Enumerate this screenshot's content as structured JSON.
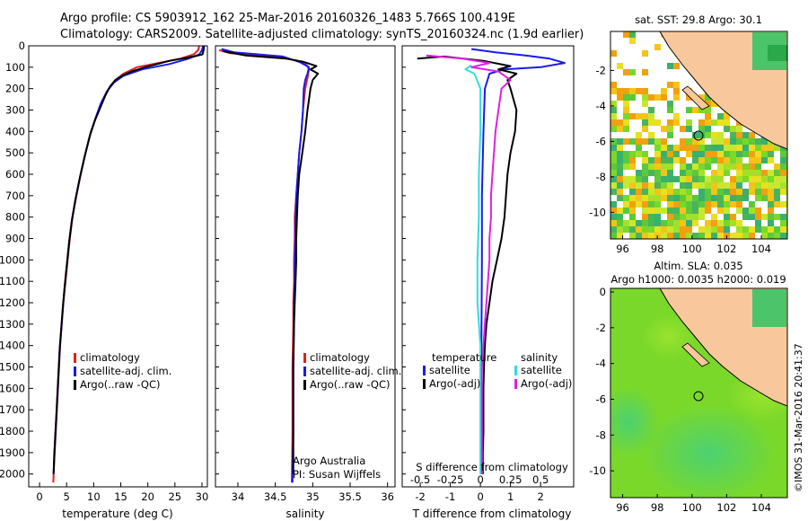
{
  "header": {
    "line1": "Argo profile: CS 5903912_162 25-Mar-2016 20160326_1483 5.766S 100.419E",
    "line2": "Climatology: CARS2009. Satellite-adjusted climatology: synTS_20160324.nc (1.9d earlier)"
  },
  "credit": "©IMOS 31-Mar-2016 20:41:37",
  "chart_data": [
    {
      "type": "line",
      "id": "temperature",
      "xlabel": "temperature (deg C)",
      "ylabel": "",
      "xlim": [
        -2,
        31
      ],
      "ylim": [
        2060,
        0
      ],
      "xticks": [
        0,
        5,
        10,
        15,
        20,
        25,
        30
      ],
      "yticks": [
        0,
        100,
        200,
        300,
        400,
        500,
        600,
        700,
        800,
        900,
        1000,
        1100,
        1200,
        1300,
        1400,
        1500,
        1600,
        1700,
        1800,
        1900,
        2000
      ],
      "legend": [
        "climatology",
        "satellite-adj. clim.",
        "Argo(..raw -QC)"
      ],
      "series": [
        {
          "name": "climatology",
          "color": "#e02020",
          "points": [
            [
              29.5,
              0
            ],
            [
              29.3,
              20
            ],
            [
              28.5,
              40
            ],
            [
              26,
              60
            ],
            [
              22,
              80
            ],
            [
              18,
              100
            ],
            [
              15.5,
              130
            ],
            [
              14,
              160
            ],
            [
              12.8,
              200
            ],
            [
              11.5,
              260
            ],
            [
              10.5,
              330
            ],
            [
              9.5,
              400
            ],
            [
              8.5,
              500
            ],
            [
              7.6,
              600
            ],
            [
              6.8,
              700
            ],
            [
              6.1,
              800
            ],
            [
              5.6,
              900
            ],
            [
              5.2,
              1000
            ],
            [
              4.8,
              1100
            ],
            [
              4.4,
              1200
            ],
            [
              4.1,
              1300
            ],
            [
              3.8,
              1400
            ],
            [
              3.6,
              1500
            ],
            [
              3.4,
              1600
            ],
            [
              3.2,
              1700
            ],
            [
              3.0,
              1800
            ],
            [
              2.8,
              1900
            ],
            [
              2.6,
              2000
            ],
            [
              2.55,
              2040
            ]
          ]
        },
        {
          "name": "satellite-adj. clim.",
          "color": "#1a1aee",
          "points": [
            [
              30.2,
              0
            ],
            [
              30,
              20
            ],
            [
              29.5,
              40
            ],
            [
              27.5,
              60
            ],
            [
              24,
              85
            ],
            [
              19,
              110
            ],
            [
              15.5,
              140
            ],
            [
              13.8,
              170
            ],
            [
              12.5,
              210
            ],
            [
              11.3,
              270
            ],
            [
              10.3,
              340
            ],
            [
              9.4,
              410
            ],
            [
              8.4,
              510
            ],
            [
              7.5,
              610
            ],
            [
              6.7,
              710
            ],
            [
              6.0,
              810
            ],
            [
              5.5,
              910
            ],
            [
              5.1,
              1010
            ],
            [
              4.7,
              1110
            ],
            [
              4.35,
              1210
            ],
            [
              4.05,
              1310
            ],
            [
              3.75,
              1410
            ],
            [
              3.55,
              1510
            ],
            [
              3.35,
              1610
            ],
            [
              3.15,
              1710
            ],
            [
              2.95,
              1810
            ],
            [
              2.75,
              1910
            ],
            [
              2.6,
              2000
            ]
          ]
        },
        {
          "name": "Argo(..raw -QC)",
          "color": "#000000",
          "points": [
            [
              30.4,
              0
            ],
            [
              30.3,
              20
            ],
            [
              30.1,
              40
            ],
            [
              28.5,
              50
            ],
            [
              24,
              70
            ],
            [
              19.5,
              100
            ],
            [
              17,
              120
            ],
            [
              15.2,
              140
            ],
            [
              14,
              160
            ],
            [
              13,
              190
            ],
            [
              12.2,
              230
            ],
            [
              11.2,
              290
            ],
            [
              10.2,
              350
            ],
            [
              9.3,
              420
            ],
            [
              8.3,
              520
            ],
            [
              7.4,
              620
            ],
            [
              6.6,
              720
            ],
            [
              5.95,
              820
            ],
            [
              5.45,
              920
            ],
            [
              5.05,
              1020
            ],
            [
              4.65,
              1120
            ],
            [
              4.3,
              1220
            ],
            [
              4.0,
              1320
            ],
            [
              3.7,
              1420
            ],
            [
              3.5,
              1520
            ],
            [
              3.3,
              1620
            ],
            [
              3.1,
              1720
            ],
            [
              2.9,
              1820
            ],
            [
              2.7,
              1920
            ],
            [
              2.6,
              2000
            ]
          ]
        }
      ]
    },
    {
      "type": "line",
      "id": "salinity",
      "xlabel": "salinity",
      "xlim": [
        33.7,
        36.1
      ],
      "ylim": [
        2060,
        0
      ],
      "xticks": [
        34,
        34.5,
        35,
        35.5,
        36
      ],
      "annotation": [
        "Argo Australia",
        "PI: Susan Wijffels"
      ],
      "legend": [
        "climatology",
        "satellite-adj. clim.",
        "Argo(..raw -QC)"
      ],
      "series": [
        {
          "name": "climatology",
          "color": "#e02020",
          "points": [
            [
              33.75,
              20
            ],
            [
              33.9,
              35
            ],
            [
              34.5,
              50
            ],
            [
              34.8,
              70
            ],
            [
              34.92,
              90
            ],
            [
              34.95,
              110
            ],
            [
              34.93,
              150
            ],
            [
              34.9,
              200
            ],
            [
              34.87,
              300
            ],
            [
              34.85,
              400
            ],
            [
              34.82,
              500
            ],
            [
              34.8,
              600
            ],
            [
              34.78,
              700
            ],
            [
              34.76,
              800
            ],
            [
              34.76,
              900
            ],
            [
              34.75,
              1000
            ],
            [
              34.75,
              1100
            ],
            [
              34.74,
              1200
            ],
            [
              34.74,
              1300
            ],
            [
              34.73,
              1500
            ],
            [
              34.73,
              1800
            ],
            [
              34.72,
              2040
            ]
          ]
        },
        {
          "name": "satellite-adj. clim.",
          "color": "#1a1aee",
          "points": [
            [
              33.78,
              15
            ],
            [
              33.95,
              30
            ],
            [
              34.6,
              50
            ],
            [
              34.82,
              75
            ],
            [
              34.95,
              100
            ],
            [
              34.93,
              130
            ],
            [
              34.9,
              160
            ],
            [
              34.88,
              200
            ],
            [
              34.87,
              300
            ],
            [
              34.85,
              400
            ],
            [
              34.82,
              500
            ],
            [
              34.8,
              600
            ],
            [
              34.78,
              700
            ],
            [
              34.77,
              800
            ],
            [
              34.77,
              900
            ],
            [
              34.76,
              1000
            ],
            [
              34.76,
              1100
            ],
            [
              34.75,
              1200
            ],
            [
              34.75,
              1300
            ],
            [
              34.74,
              1500
            ],
            [
              34.74,
              1800
            ],
            [
              34.73,
              2040
            ]
          ]
        },
        {
          "name": "Argo(..raw -QC)",
          "color": "#000000",
          "points": [
            [
              33.8,
              25
            ],
            [
              34.1,
              45
            ],
            [
              34.65,
              60
            ],
            [
              34.88,
              75
            ],
            [
              35.05,
              95
            ],
            [
              34.97,
              110
            ],
            [
              35.07,
              130
            ],
            [
              35.0,
              160
            ],
            [
              34.97,
              200
            ],
            [
              34.95,
              250
            ],
            [
              34.93,
              300
            ],
            [
              34.9,
              400
            ],
            [
              34.86,
              500
            ],
            [
              34.82,
              600
            ],
            [
              34.8,
              700
            ],
            [
              34.79,
              800
            ],
            [
              34.78,
              900
            ],
            [
              34.78,
              1000
            ],
            [
              34.77,
              1100
            ],
            [
              34.76,
              1200
            ],
            [
              34.75,
              1300
            ],
            [
              34.74,
              1500
            ],
            [
              34.74,
              1800
            ],
            [
              34.74,
              2000
            ]
          ]
        }
      ]
    },
    {
      "type": "line",
      "id": "difference",
      "xlabel_bottom": "T difference from climatology",
      "xlabel_top": "S difference from climatology",
      "xlim": [
        -2.6,
        3.1
      ],
      "ylim": [
        2060,
        0
      ],
      "xticks": [
        -2,
        -1,
        0,
        1,
        2
      ],
      "xticks_top": [
        "-0.5",
        "-0.25",
        "0",
        "0.25",
        "0.5"
      ],
      "legend_titles": [
        "temperature",
        "salinity"
      ],
      "legend": [
        "satellite",
        "Argo(-adj)",
        "satellite",
        "Argo(-adj)"
      ],
      "series": [
        {
          "name": "temperature satellite",
          "color": "#1a1aee",
          "points": [
            [
              -0.3,
              15
            ],
            [
              0.5,
              30
            ],
            [
              1.5,
              45
            ],
            [
              2.3,
              60
            ],
            [
              2.8,
              80
            ],
            [
              2.0,
              100
            ],
            [
              0.8,
              110
            ],
            [
              0.3,
              130
            ],
            [
              0.15,
              200
            ],
            [
              0.1,
              400
            ],
            [
              0.05,
              700
            ],
            [
              0.05,
              1000
            ],
            [
              0.03,
              1500
            ],
            [
              0.02,
              2000
            ]
          ]
        },
        {
          "name": "temperature Argo(-adj)",
          "color": "#000000",
          "points": [
            [
              -2.1,
              60
            ],
            [
              -1.2,
              50
            ],
            [
              0.1,
              70
            ],
            [
              1.0,
              95
            ],
            [
              0.6,
              110
            ],
            [
              1.2,
              130
            ],
            [
              0.9,
              160
            ],
            [
              1.0,
              200
            ],
            [
              1.2,
              300
            ],
            [
              1.15,
              400
            ],
            [
              1.0,
              500
            ],
            [
              0.9,
              600
            ],
            [
              0.85,
              700
            ],
            [
              0.8,
              800
            ],
            [
              0.7,
              900
            ],
            [
              0.55,
              1000
            ],
            [
              0.4,
              1100
            ],
            [
              0.3,
              1200
            ],
            [
              0.2,
              1300
            ],
            [
              0.15,
              1400
            ],
            [
              0.12,
              1500
            ],
            [
              0.1,
              1600
            ],
            [
              0.1,
              1700
            ],
            [
              0.1,
              1800
            ],
            [
              0.08,
              1900
            ],
            [
              0.08,
              2000
            ]
          ]
        },
        {
          "name": "salinity satellite",
          "color": "#33dddd",
          "points": [
            [
              -0.3,
              90
            ],
            [
              -0.5,
              110
            ],
            [
              -0.2,
              130
            ],
            [
              0.0,
              200
            ],
            [
              0.0,
              400
            ],
            [
              -0.05,
              600
            ],
            [
              -0.05,
              800
            ],
            [
              -0.1,
              1000
            ],
            [
              -0.1,
              1200
            ],
            [
              0.0,
              1400
            ],
            [
              0.0,
              1800
            ],
            [
              0.0,
              2000
            ]
          ]
        },
        {
          "name": "salinity Argo(-adj)",
          "color": "#e020e0",
          "points": [
            [
              -1.8,
              45
            ],
            [
              -0.6,
              60
            ],
            [
              0.3,
              80
            ],
            [
              -0.3,
              100
            ],
            [
              0.6,
              120
            ],
            [
              1.0,
              160
            ],
            [
              0.7,
              200
            ],
            [
              0.6,
              300
            ],
            [
              0.5,
              400
            ],
            [
              0.45,
              500
            ],
            [
              0.4,
              600
            ],
            [
              0.35,
              700
            ],
            [
              0.35,
              800
            ],
            [
              0.3,
              900
            ],
            [
              0.3,
              1000
            ],
            [
              0.25,
              1100
            ],
            [
              0.2,
              1200
            ],
            [
              0.15,
              1300
            ],
            [
              0.1,
              1400
            ],
            [
              0.05,
              1500
            ],
            [
              0.05,
              1700
            ],
            [
              0.05,
              1900
            ],
            [
              0.05,
              2000
            ]
          ]
        }
      ]
    },
    {
      "type": "heatmap",
      "id": "sst-map",
      "title": "sat. SST: 29.8 Argo: 30.1",
      "xlim": [
        95.3,
        105.5
      ],
      "ylim": [
        -11.5,
        0.2
      ],
      "xticks": [
        96,
        98,
        100,
        102,
        104
      ],
      "yticks": [
        -2,
        -4,
        -6,
        -8,
        -10
      ],
      "marker": {
        "lon": 100.419,
        "lat": -5.766
      }
    },
    {
      "type": "heatmap",
      "id": "sla-map",
      "title": "Altim. SLA: 0.035",
      "subtitle": "Argo h1000: 0.0035 h2000: 0.019",
      "xlim": [
        95.3,
        105.5
      ],
      "ylim": [
        -11.5,
        0.2
      ],
      "xticks": [
        96,
        98,
        100,
        102,
        104
      ],
      "yticks": [
        0,
        -2,
        -4,
        -6,
        -8,
        -10
      ],
      "marker": {
        "lon": 100.419,
        "lat": -5.766
      }
    }
  ]
}
